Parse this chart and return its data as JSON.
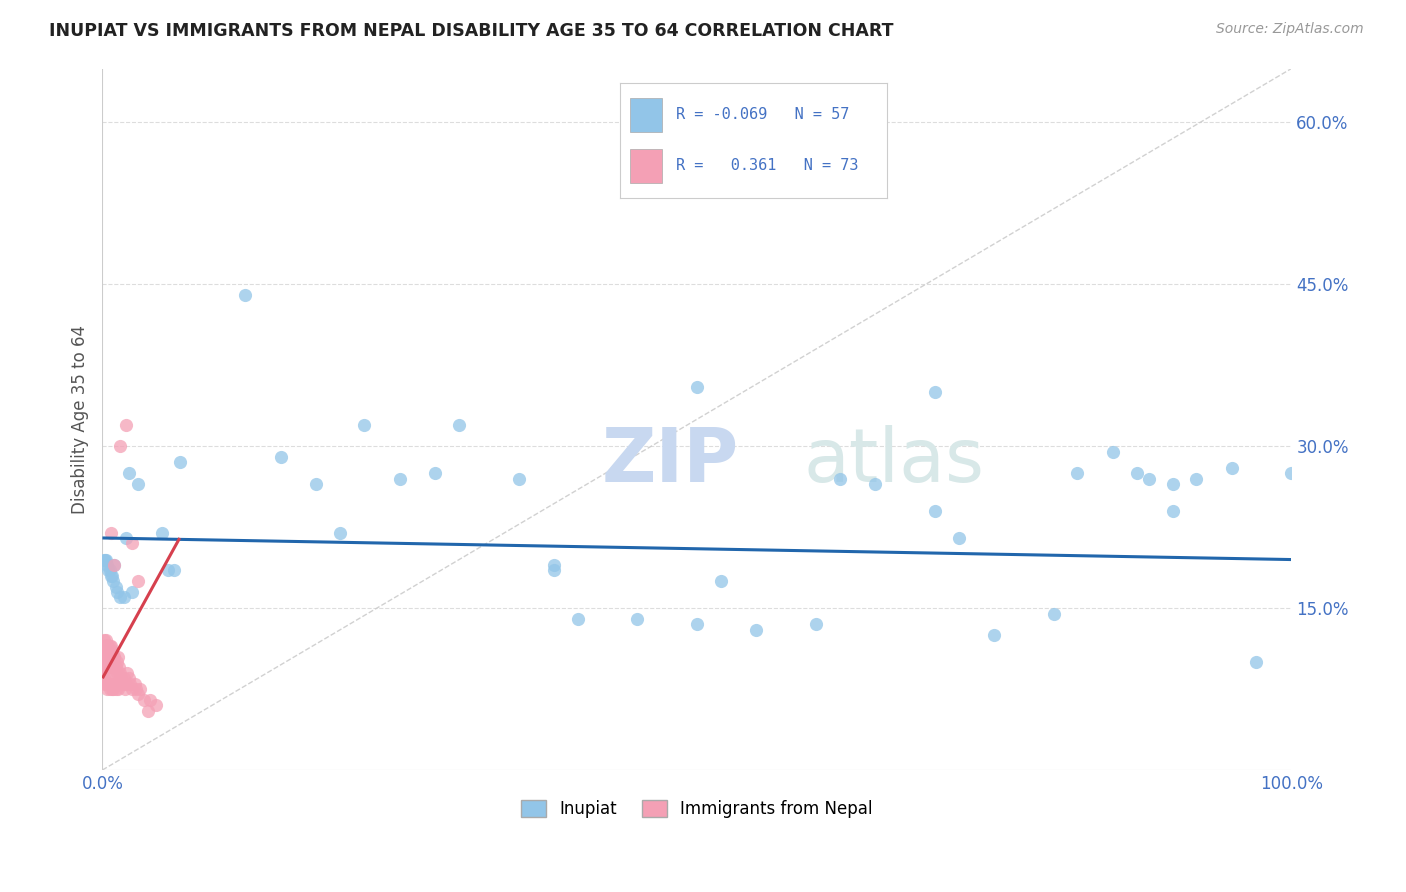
{
  "title": "INUPIAT VS IMMIGRANTS FROM NEPAL DISABILITY AGE 35 TO 64 CORRELATION CHART",
  "source": "Source: ZipAtlas.com",
  "ylabel": "Disability Age 35 to 64",
  "right_yticks": [
    "60.0%",
    "45.0%",
    "30.0%",
    "15.0%"
  ],
  "right_ytick_vals": [
    0.6,
    0.45,
    0.3,
    0.15
  ],
  "inupiat_color": "#92C5E8",
  "nepal_color": "#F4A0B5",
  "trendline_inupiat_color": "#2166AC",
  "trendline_nepal_color": "#D6404E",
  "background_color": "#FFFFFF",
  "watermark": "ZIPatlas",
  "inupiat_x": [
    0.001,
    0.002,
    0.003,
    0.004,
    0.005,
    0.006,
    0.007,
    0.008,
    0.009,
    0.01,
    0.011,
    0.012,
    0.015,
    0.018,
    0.02,
    0.022,
    0.025,
    0.03,
    0.05,
    0.055,
    0.06,
    0.065,
    0.12,
    0.15,
    0.18,
    0.2,
    0.22,
    0.25,
    0.28,
    0.3,
    0.35,
    0.4,
    0.45,
    0.5,
    0.52,
    0.55,
    0.6,
    0.62,
    0.65,
    0.7,
    0.72,
    0.75,
    0.8,
    0.82,
    0.85,
    0.87,
    0.9,
    0.92,
    0.95,
    0.97,
    1.0,
    0.5,
    0.7,
    0.38,
    0.38,
    0.88,
    0.9
  ],
  "inupiat_y": [
    0.195,
    0.195,
    0.195,
    0.19,
    0.185,
    0.185,
    0.18,
    0.18,
    0.175,
    0.19,
    0.17,
    0.165,
    0.16,
    0.16,
    0.215,
    0.275,
    0.165,
    0.265,
    0.22,
    0.185,
    0.185,
    0.285,
    0.44,
    0.29,
    0.265,
    0.22,
    0.32,
    0.27,
    0.275,
    0.32,
    0.27,
    0.14,
    0.14,
    0.135,
    0.175,
    0.13,
    0.135,
    0.27,
    0.265,
    0.24,
    0.215,
    0.125,
    0.145,
    0.275,
    0.295,
    0.275,
    0.24,
    0.27,
    0.28,
    0.1,
    0.275,
    0.355,
    0.35,
    0.19,
    0.185,
    0.27,
    0.265
  ],
  "nepal_x": [
    0.0,
    0.0,
    0.0,
    0.001,
    0.001,
    0.001,
    0.001,
    0.002,
    0.002,
    0.002,
    0.002,
    0.003,
    0.003,
    0.003,
    0.003,
    0.004,
    0.004,
    0.004,
    0.005,
    0.005,
    0.005,
    0.006,
    0.006,
    0.006,
    0.007,
    0.007,
    0.007,
    0.008,
    0.008,
    0.008,
    0.009,
    0.009,
    0.01,
    0.01,
    0.011,
    0.011,
    0.012,
    0.013,
    0.013,
    0.014,
    0.015,
    0.016,
    0.017,
    0.018,
    0.019,
    0.02,
    0.021,
    0.022,
    0.023,
    0.025,
    0.027,
    0.028,
    0.03,
    0.032,
    0.035,
    0.038,
    0.04,
    0.045,
    0.01,
    0.015,
    0.02,
    0.025,
    0.03,
    0.005,
    0.007,
    0.002,
    0.003,
    0.004,
    0.006,
    0.008,
    0.01,
    0.012,
    0.014
  ],
  "nepal_y": [
    0.105,
    0.11,
    0.09,
    0.12,
    0.115,
    0.1,
    0.085,
    0.115,
    0.105,
    0.095,
    0.08,
    0.12,
    0.11,
    0.095,
    0.08,
    0.105,
    0.09,
    0.075,
    0.115,
    0.1,
    0.08,
    0.11,
    0.095,
    0.075,
    0.115,
    0.1,
    0.08,
    0.105,
    0.09,
    0.075,
    0.095,
    0.075,
    0.105,
    0.08,
    0.095,
    0.075,
    0.09,
    0.105,
    0.075,
    0.085,
    0.09,
    0.085,
    0.08,
    0.085,
    0.075,
    0.08,
    0.09,
    0.085,
    0.08,
    0.075,
    0.08,
    0.075,
    0.07,
    0.075,
    0.065,
    0.055,
    0.065,
    0.06,
    0.19,
    0.3,
    0.32,
    0.21,
    0.175,
    0.08,
    0.22,
    0.115,
    0.115,
    0.115,
    0.115,
    0.11,
    0.105,
    0.1,
    0.095
  ],
  "xlim": [
    0.0,
    1.0
  ],
  "ylim": [
    0.0,
    0.65
  ],
  "diag_line_end_y": 0.65
}
